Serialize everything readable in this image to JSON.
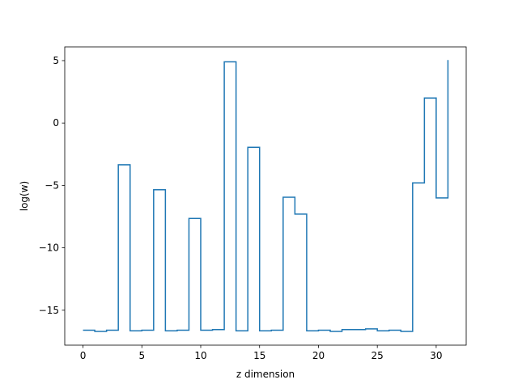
{
  "chart_data": {
    "type": "line",
    "drawstyle": "steps-post",
    "title": "",
    "xlabel": "z dimension",
    "ylabel": "log(w)",
    "xlim": [
      -1.55,
      32.55
    ],
    "ylim": [
      -17.8,
      6.1
    ],
    "xticks": [
      0,
      5,
      10,
      15,
      20,
      25,
      30
    ],
    "yticks": [
      5,
      0,
      -5,
      -10,
      -15
    ],
    "ytick_labels": [
      "5",
      "0",
      "−5",
      "−10",
      "−15"
    ],
    "grid": false,
    "line_color": "#1f77b4",
    "x": [
      0,
      1,
      2,
      3,
      4,
      5,
      6,
      7,
      8,
      9,
      10,
      11,
      12,
      13,
      14,
      15,
      16,
      17,
      18,
      19,
      20,
      21,
      22,
      23,
      24,
      25,
      26,
      27,
      28,
      29,
      30,
      31
    ],
    "values": [
      -16.6,
      -16.7,
      -16.6,
      -3.35,
      -16.65,
      -16.6,
      -5.35,
      -16.65,
      -16.6,
      -7.65,
      -16.6,
      -16.55,
      4.9,
      -16.65,
      -1.95,
      -16.65,
      -16.6,
      -5.95,
      -7.3,
      -16.65,
      -16.6,
      -16.7,
      -16.55,
      -16.55,
      -16.5,
      -16.65,
      -16.6,
      -16.7,
      -4.8,
      2.0,
      -6.0,
      5.05
    ]
  }
}
